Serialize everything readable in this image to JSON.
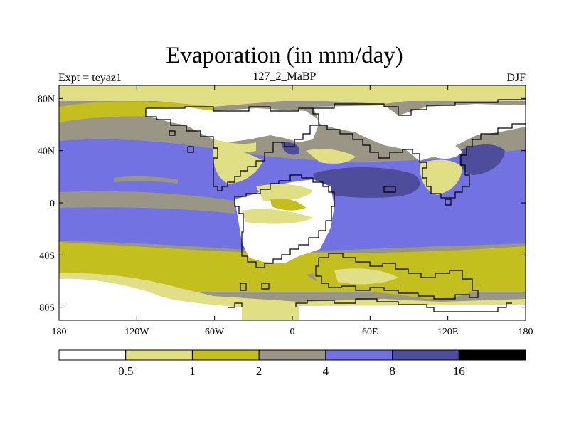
{
  "title": "Evaporation (in mm/day)",
  "subtitle_left": "Expt = teyaz1",
  "subtitle_center": "127_2_MaBP",
  "subtitle_right": "DJF",
  "x_ticks": [
    {
      "value": -180,
      "label": "180"
    },
    {
      "value": -120,
      "label": "120W"
    },
    {
      "value": -60,
      "label": "60W"
    },
    {
      "value": 0,
      "label": "0"
    },
    {
      "value": 60,
      "label": "60E"
    },
    {
      "value": 120,
      "label": "120E"
    },
    {
      "value": 180,
      "label": "180"
    }
  ],
  "y_ticks": [
    {
      "value": 80,
      "label": "80N"
    },
    {
      "value": 40,
      "label": "40N"
    },
    {
      "value": 0,
      "label": "0"
    },
    {
      "value": -40,
      "label": "40S"
    },
    {
      "value": -80,
      "label": "80S"
    }
  ],
  "colorbar": {
    "colors": [
      "#ffffff",
      "#e0df85",
      "#c2bf1e",
      "#999685",
      "#7272e2",
      "#4d4d9c",
      "#000000"
    ],
    "labels": [
      "0.5",
      "1",
      "2",
      "4",
      "8",
      "16"
    ]
  },
  "colors": {
    "level_0": "#ffffff",
    "level_1": "#e0df85",
    "level_2": "#c2bf1e",
    "level_3": "#999685",
    "level_4": "#7272e2",
    "level_5": "#4d4d9c",
    "coast": "#000000"
  }
}
